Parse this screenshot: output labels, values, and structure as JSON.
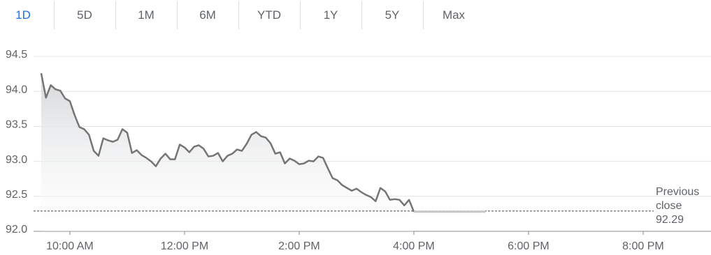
{
  "tabs": [
    "1D",
    "5D",
    "1M",
    "6M",
    "YTD",
    "1Y",
    "5Y",
    "Max"
  ],
  "selected_tab": 0,
  "chart_data": {
    "type": "line",
    "x": [
      570,
      575,
      580,
      585,
      590,
      595,
      600,
      605,
      610,
      615,
      620,
      625,
      630,
      635,
      640,
      645,
      650,
      655,
      660,
      665,
      670,
      675,
      680,
      685,
      690,
      695,
      700,
      705,
      710,
      715,
      720,
      725,
      730,
      735,
      740,
      745,
      750,
      755,
      760,
      765,
      770,
      775,
      780,
      785,
      790,
      795,
      800,
      805,
      810,
      815,
      820,
      825,
      830,
      835,
      840,
      845,
      850,
      855,
      860,
      865,
      870,
      875,
      880,
      885,
      890,
      895,
      900,
      905,
      910,
      915,
      920,
      925,
      930,
      935,
      940,
      945,
      950,
      955,
      960
    ],
    "series": [
      {
        "color": "#757575",
        "values": [
          94.26,
          93.91,
          94.09,
          94.03,
          94.01,
          93.9,
          93.86,
          93.66,
          93.49,
          93.46,
          93.38,
          93.15,
          93.08,
          93.33,
          93.3,
          93.28,
          93.31,
          93.46,
          93.41,
          93.12,
          93.16,
          93.09,
          93.05,
          93.0,
          92.93,
          93.04,
          93.11,
          93.03,
          93.03,
          93.24,
          93.2,
          93.13,
          93.21,
          93.23,
          93.18,
          93.07,
          93.08,
          93.12,
          93.0,
          93.08,
          93.11,
          93.17,
          93.15,
          93.25,
          93.38,
          93.42,
          93.36,
          93.34,
          93.26,
          93.11,
          93.13,
          92.97,
          93.04,
          93.01,
          92.96,
          92.97,
          93.01,
          93.0,
          93.07,
          93.05,
          92.9,
          92.76,
          92.73,
          92.66,
          92.62,
          92.58,
          92.61,
          92.56,
          92.52,
          92.49,
          92.43,
          92.62,
          92.57,
          92.45,
          92.46,
          92.45,
          92.37,
          92.45,
          92.28
        ]
      }
    ],
    "after_hours": {
      "color": "#c8c8c8",
      "x": [
        960,
        1035
      ],
      "values": [
        92.28,
        92.28
      ]
    },
    "previous_close": {
      "label": "Previous close",
      "value": 92.29
    },
    "xlim": [
      562,
      1271
    ],
    "ylim": [
      92,
      94.5
    ],
    "xticks": [
      {
        "value": 600,
        "label": "10:00 AM"
      },
      {
        "value": 720,
        "label": "12:00 PM"
      },
      {
        "value": 840,
        "label": "2:00 PM"
      },
      {
        "value": 960,
        "label": "4:00 PM"
      },
      {
        "value": 1080,
        "label": "6:00 PM"
      },
      {
        "value": 1200,
        "label": "8:00 PM"
      }
    ],
    "yticks": [
      {
        "value": 92,
        "label": "92.0"
      },
      92.5,
      {
        "value": 93,
        "label": "93.0"
      },
      93.5,
      {
        "value": 94,
        "label": "94.0"
      },
      94.5
    ],
    "grid": true
  }
}
